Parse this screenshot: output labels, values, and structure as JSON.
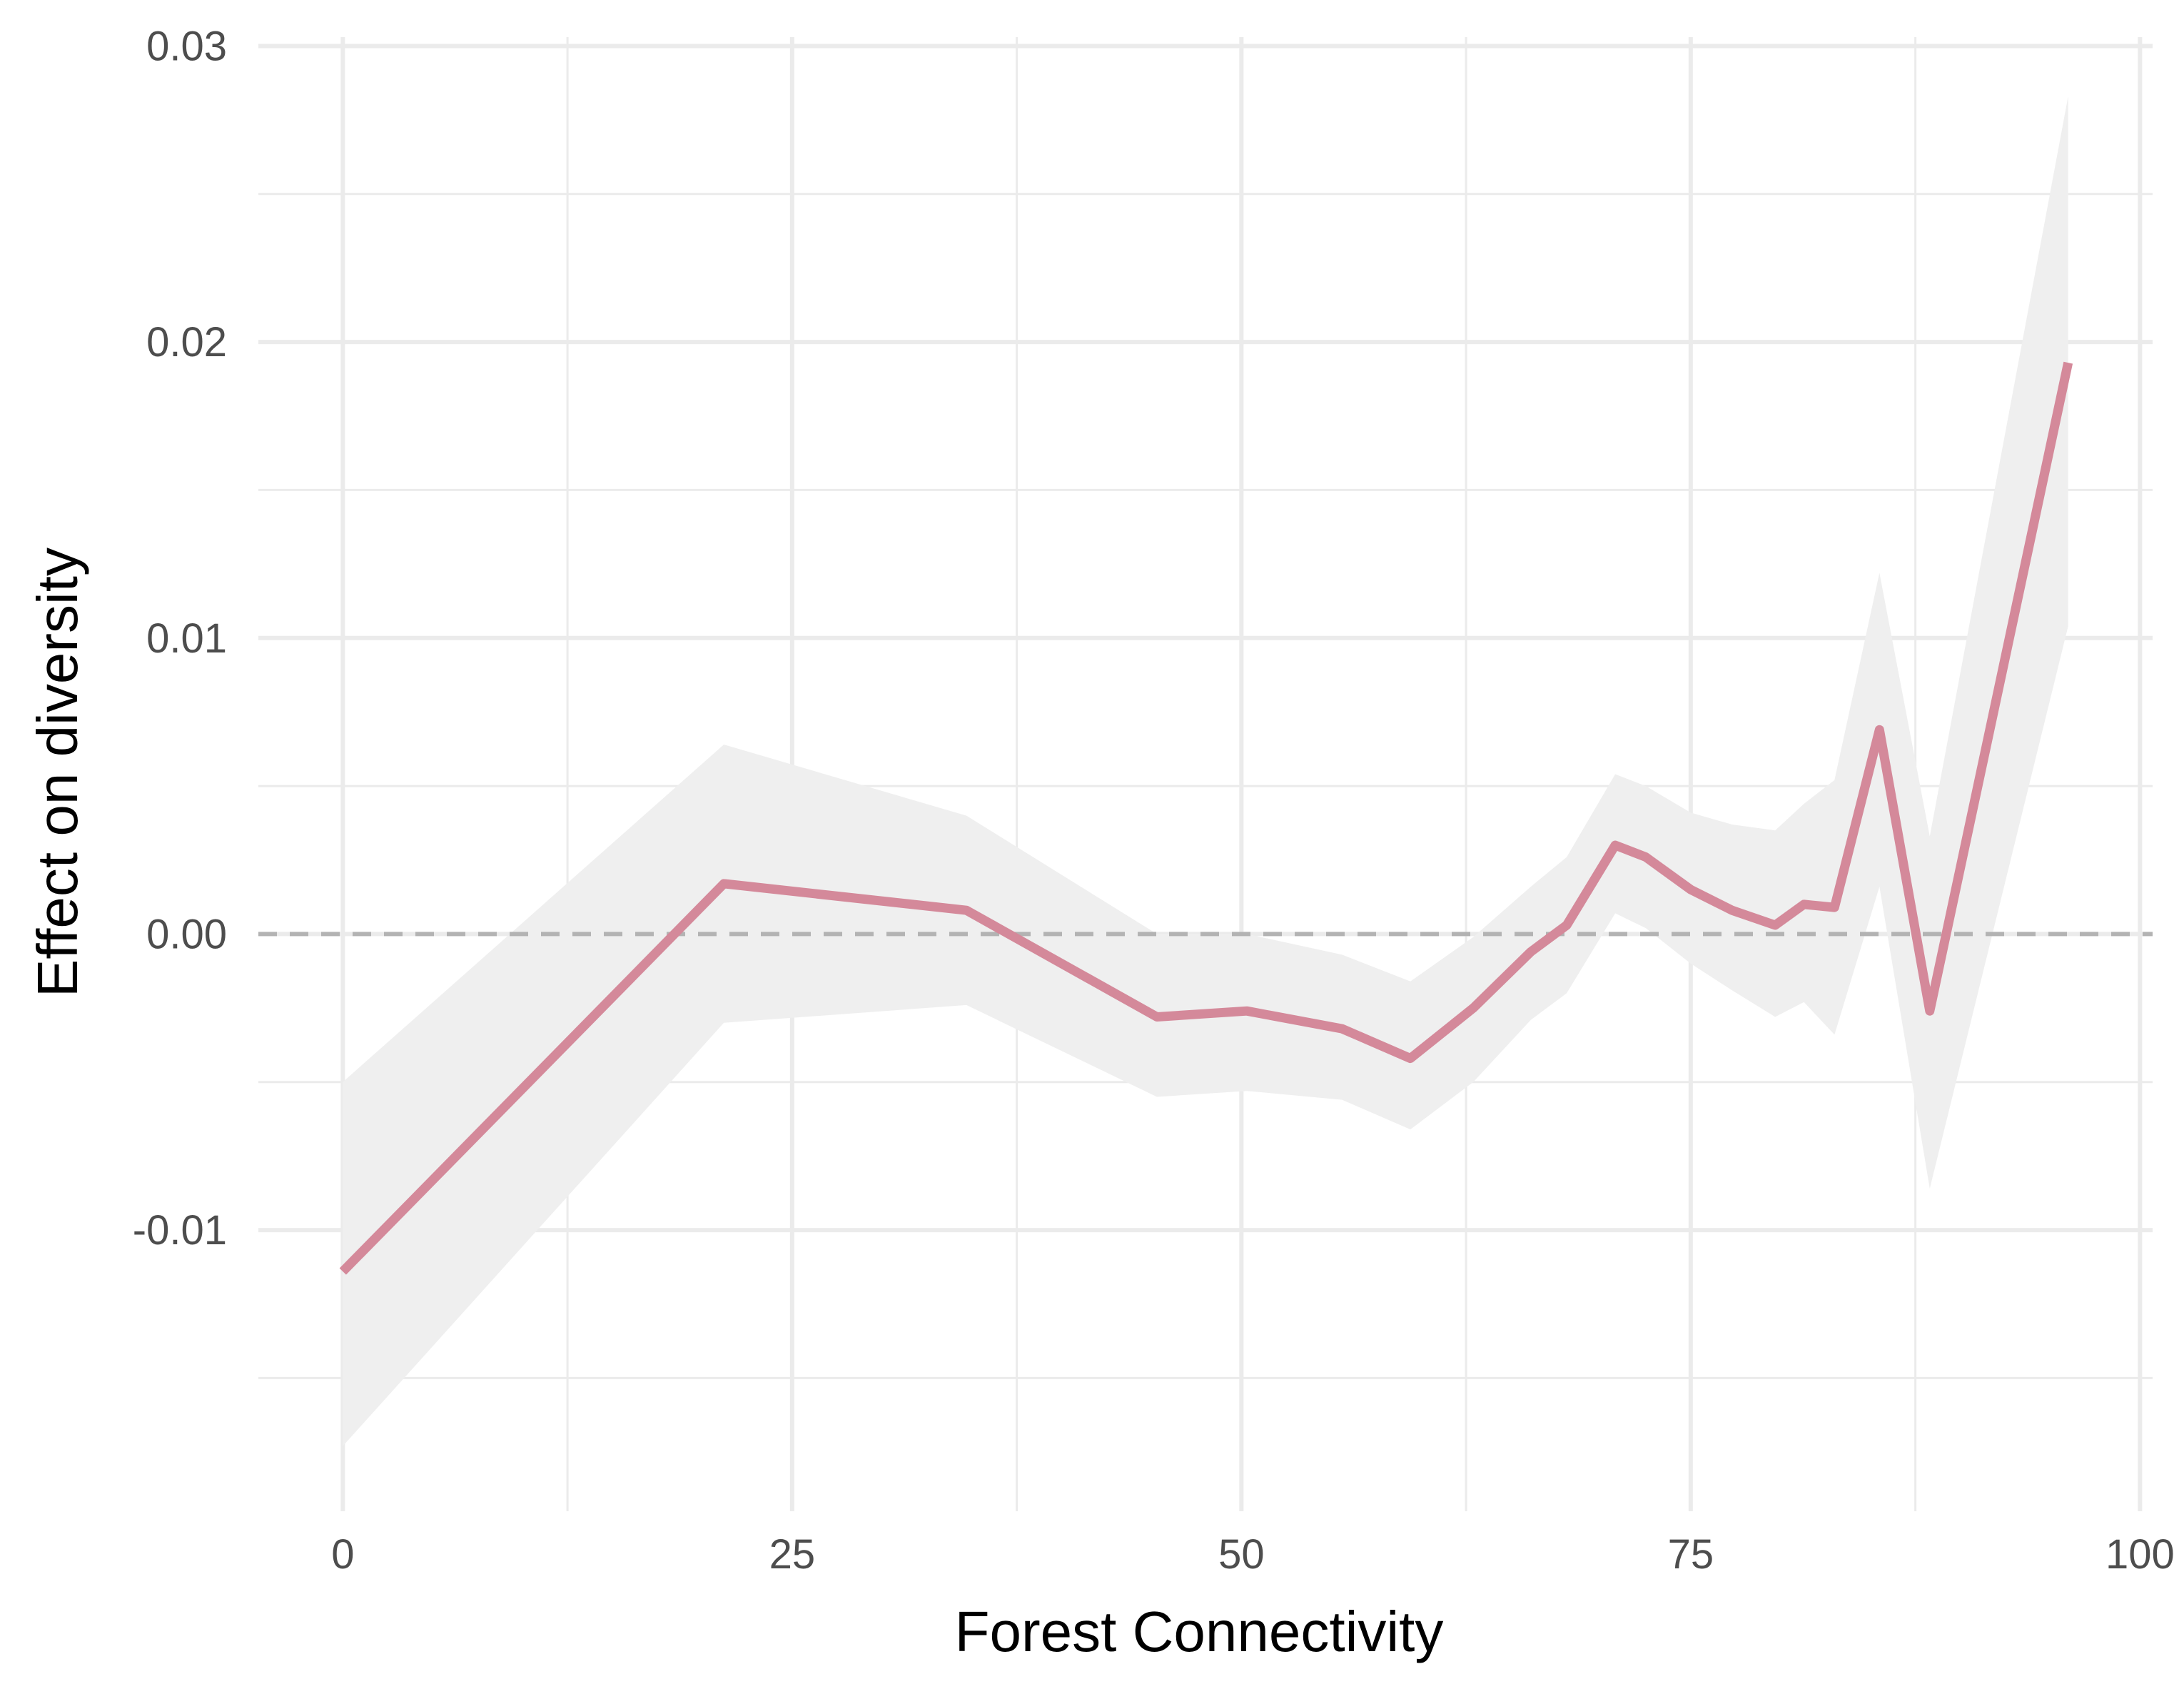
{
  "chart_data": {
    "type": "line",
    "title": "",
    "xlabel": "Forest Connectivity",
    "ylabel": "Effect on diversity",
    "xlim": [
      -4.7,
      100.7
    ],
    "ylim": [
      -0.0195,
      0.0303
    ],
    "x_ticks": [
      0,
      25,
      50,
      75,
      100
    ],
    "x_tick_labels": [
      "0",
      "25",
      "50",
      "75",
      "100"
    ],
    "y_ticks": [
      -0.01,
      0.0,
      0.01,
      0.02,
      0.03
    ],
    "y_tick_labels": [
      "-0.01",
      "0.00",
      "0.01",
      "0.02",
      "0.03"
    ],
    "grid": true,
    "reference_line": {
      "y": 0,
      "style": "dashed",
      "color": "#b3b3b3"
    },
    "series": [
      {
        "color": "#d4899a",
        "ribbon_color": "#efefef",
        "points": [
          {
            "x": 0.0,
            "y": -0.0114,
            "lower": -0.0173,
            "upper": -0.005
          },
          {
            "x": 21.2,
            "y": 0.0017,
            "lower": -0.003,
            "upper": 0.0064
          },
          {
            "x": 34.7,
            "y": 0.0008,
            "lower": -0.0024,
            "upper": 0.004
          },
          {
            "x": 45.3,
            "y": -0.0028,
            "lower": -0.0055,
            "upper": 0.0
          },
          {
            "x": 50.3,
            "y": -0.0026,
            "lower": -0.0053,
            "upper": 0.0
          },
          {
            "x": 55.6,
            "y": -0.0032,
            "lower": -0.0056,
            "upper": -0.0007
          },
          {
            "x": 59.4,
            "y": -0.0042,
            "lower": -0.0066,
            "upper": -0.0016
          },
          {
            "x": 62.9,
            "y": -0.0025,
            "lower": -0.005,
            "upper": -0.0001
          },
          {
            "x": 66.1,
            "y": -0.0006,
            "lower": -0.0029,
            "upper": 0.0016
          },
          {
            "x": 68.1,
            "y": 0.0003,
            "lower": -0.002,
            "upper": 0.0026
          },
          {
            "x": 70.8,
            "y": 0.003,
            "lower": 0.0007,
            "upper": 0.0054
          },
          {
            "x": 72.5,
            "y": 0.0026,
            "lower": 0.0002,
            "upper": 0.005
          },
          {
            "x": 75.0,
            "y": 0.0015,
            "lower": -0.001,
            "upper": 0.0041
          },
          {
            "x": 77.3,
            "y": 0.0008,
            "lower": -0.0019,
            "upper": 0.0037
          },
          {
            "x": 79.7,
            "y": 0.0003,
            "lower": -0.0028,
            "upper": 0.0035
          },
          {
            "x": 81.3,
            "y": 0.001,
            "lower": -0.0023,
            "upper": 0.0044
          },
          {
            "x": 83.0,
            "y": 0.0009,
            "lower": -0.0034,
            "upper": 0.0052
          },
          {
            "x": 85.5,
            "y": 0.0069,
            "lower": 0.0016,
            "upper": 0.0122
          },
          {
            "x": 88.3,
            "y": -0.0026,
            "lower": -0.0086,
            "upper": 0.0033
          },
          {
            "x": 96.0,
            "y": 0.0193,
            "lower": 0.0104,
            "upper": 0.0283
          }
        ]
      }
    ]
  }
}
